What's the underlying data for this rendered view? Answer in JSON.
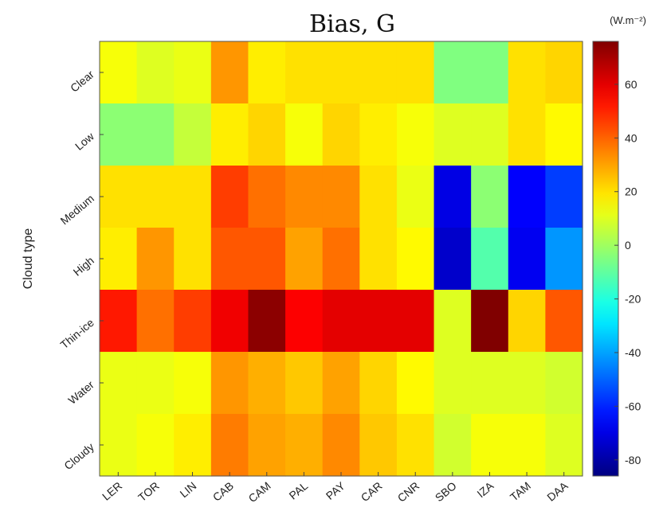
{
  "chart_data": {
    "type": "heatmap",
    "title": "Bias, G",
    "ylabel": "Cloud type",
    "xlabel": "",
    "colorbar_unit": "(W.m⁻²)",
    "x_categories": [
      "LER",
      "TOR",
      "LIN",
      "CAB",
      "CAM",
      "PAL",
      "PAY",
      "CAR",
      "CNR",
      "SBO",
      "IZA",
      "TAM",
      "DAA"
    ],
    "y_categories": [
      "Clear",
      "Low",
      "Medium",
      "High",
      "Thin-ice",
      "Water",
      "Cloudy"
    ],
    "values": [
      [
        14,
        10,
        12,
        32,
        18,
        20,
        20,
        20,
        20,
        -5,
        -5,
        20,
        22
      ],
      [
        -3,
        -3,
        6,
        18,
        22,
        14,
        22,
        18,
        14,
        10,
        10,
        20,
        16
      ],
      [
        20,
        20,
        20,
        46,
        38,
        34,
        34,
        20,
        12,
        -70,
        -3,
        -66,
        -56
      ],
      [
        18,
        32,
        20,
        42,
        42,
        30,
        38,
        20,
        16,
        -74,
        -12,
        -68,
        -42
      ],
      [
        52,
        38,
        46,
        58,
        74,
        56,
        60,
        60,
        60,
        10,
        76,
        22,
        42
      ],
      [
        12,
        12,
        14,
        32,
        28,
        24,
        30,
        22,
        16,
        10,
        10,
        10,
        8
      ],
      [
        12,
        14,
        18,
        36,
        30,
        28,
        34,
        24,
        20,
        8,
        14,
        14,
        10
      ]
    ],
    "colorbar": {
      "range": [
        -86,
        76
      ],
      "ticks": [
        60,
        40,
        20,
        0,
        -20,
        -40,
        -60,
        -80
      ],
      "tick_labels": [
        "60",
        "40",
        "20",
        "0",
        "-20",
        "-40",
        "-60",
        "-80"
      ],
      "colormap": "jet"
    }
  }
}
